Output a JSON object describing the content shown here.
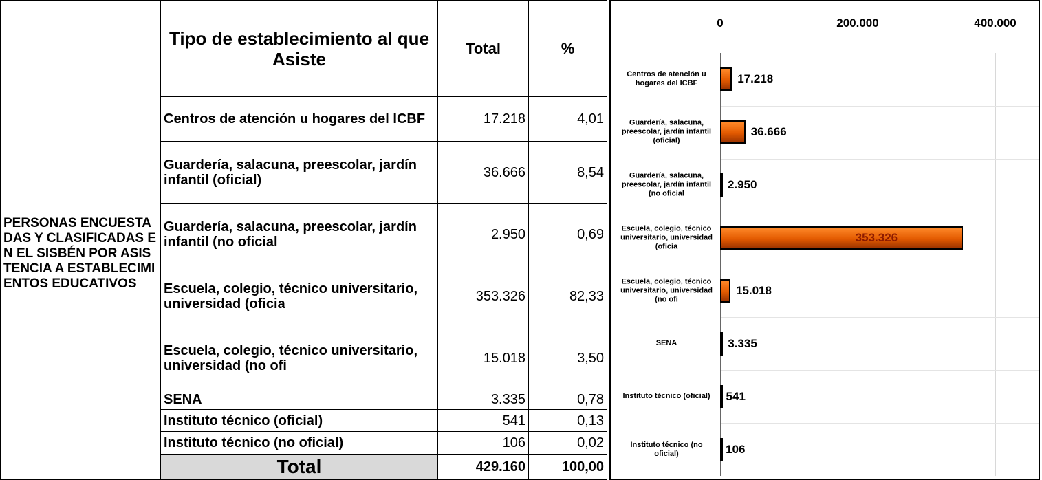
{
  "table": {
    "side_label": "PERSONAS ENCUESTADAS Y CLASIFICADAS EN EL SISBÉN POR ASISTENCIA A ESTABLECIMIENTOS EDUCATIVOS",
    "header": [
      "Tipo de establecimiento al que Asiste",
      "Total",
      "%"
    ],
    "rows": [
      [
        "Centros de atención u hogares del ICBF",
        "17.218",
        "4,01"
      ],
      [
        "Guardería, salacuna, preescolar, jardín infantil (oficial)",
        "36.666",
        "8,54"
      ],
      [
        "Guardería, salacuna, preescolar, jardín infantil (no oficial",
        "2.950",
        "0,69"
      ],
      [
        "Escuela, colegio, técnico universitario, universidad (oficia",
        "353.326",
        "82,33"
      ],
      [
        "Escuela, colegio, técnico universitario, universidad (no ofi",
        "15.018",
        "3,50"
      ],
      [
        "SENA",
        "3.335",
        "0,78"
      ],
      [
        "Instituto técnico (oficial)",
        "541",
        "0,13"
      ],
      [
        "Instituto técnico (no oficial)",
        "106",
        "0,02"
      ]
    ],
    "total": [
      "Total",
      "429.160",
      "100,00"
    ]
  },
  "chart_data": {
    "type": "hbar",
    "categories": [
      "Centros de atención u hogares del ICBF",
      "Guardería, salacuna, preescolar, jardín infantil (oficial)",
      "Guardería, salacuna, preescolar, jardín infantil (no oficial",
      "Escuela, colegio, técnico universitario, universidad (oficia",
      "Escuela, colegio, técnico universitario, universidad (no ofi",
      "SENA",
      "Instituto técnico (oficial)",
      "Instituto técnico (no oficial)"
    ],
    "values": [
      17218,
      36666,
      2950,
      353326,
      15018,
      3335,
      541,
      106
    ],
    "value_labels": [
      "17.218",
      "36.666",
      "2.950",
      "353.326",
      "15.018",
      "3.335",
      "541",
      "106"
    ],
    "color": "#e35a00",
    "xlim": [
      0,
      463000
    ],
    "xticks": [
      0,
      {
        "value": 200000,
        "label": "200.000"
      },
      {
        "value": 400000,
        "label": "400.000"
      }
    ],
    "grid": true
  }
}
